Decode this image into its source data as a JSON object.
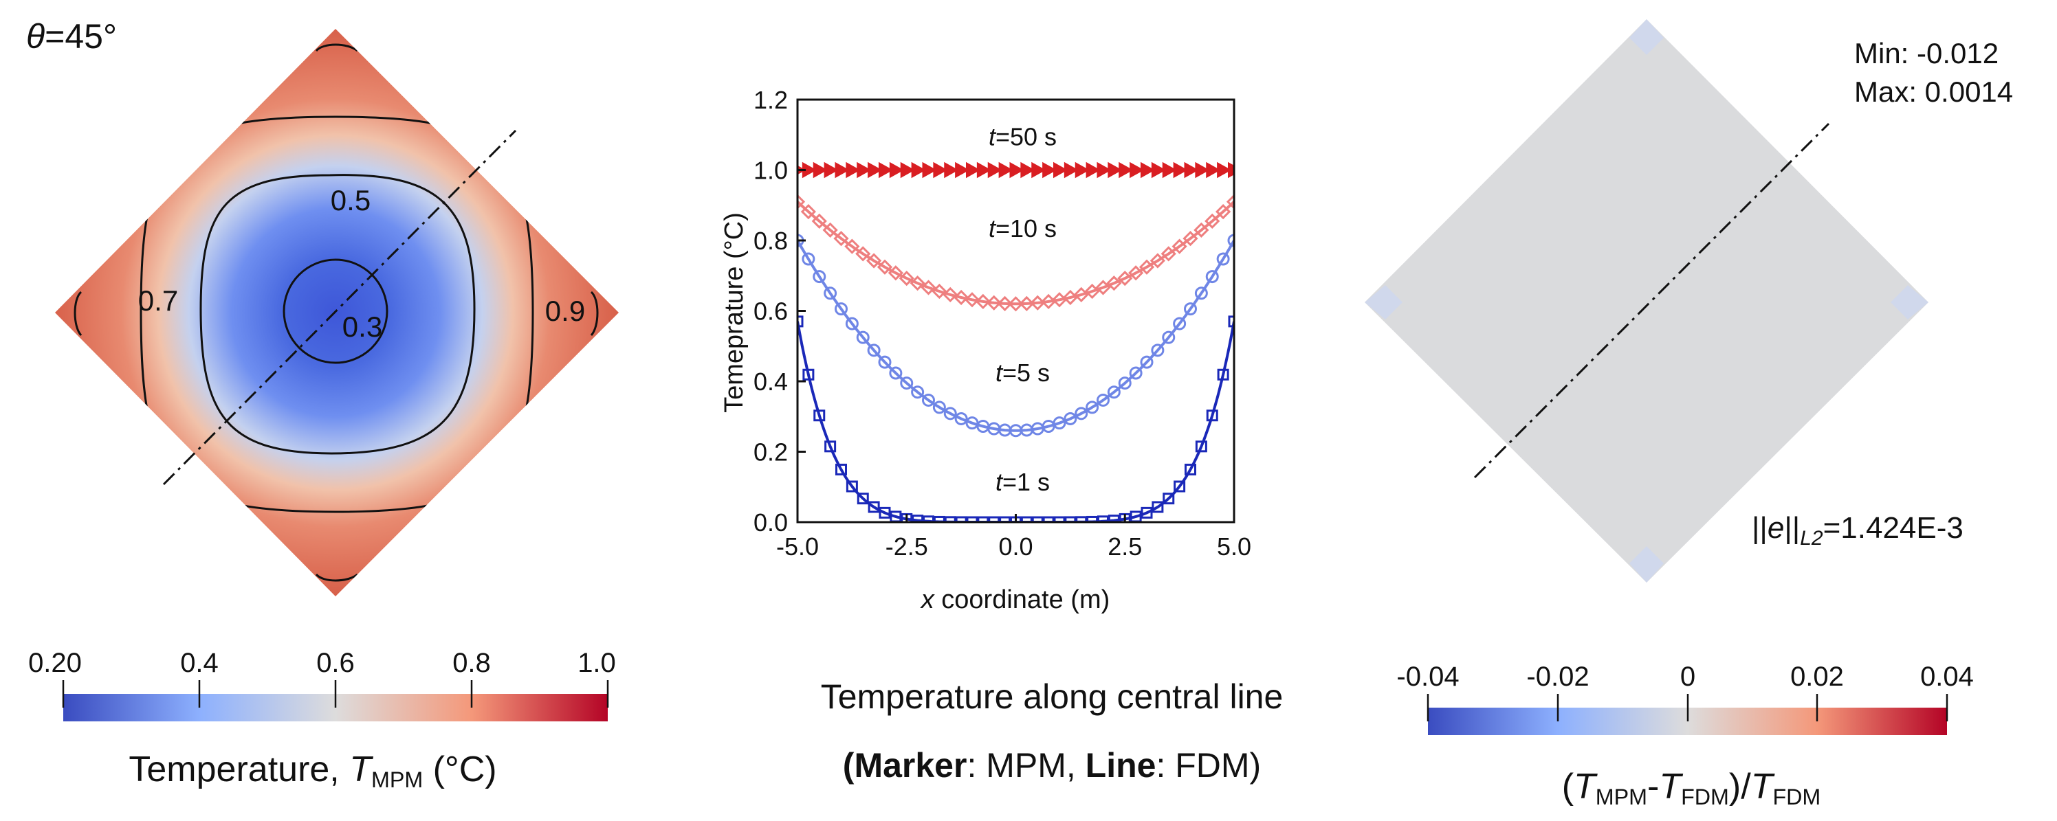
{
  "left_panel": {
    "angle_symbol": "θ",
    "angle_value": "=45°",
    "contour_labels": [
      "0.5",
      "0.7",
      "0.3",
      "0.9"
    ],
    "colorbar": {
      "ticks": [
        "0.20",
        "0.4",
        "0.6",
        "0.8",
        "1.0"
      ],
      "label_prefix": "Temperature, ",
      "label_T": "T",
      "label_sub": "MPM",
      "label_unit": " (°C)"
    },
    "colors": {
      "cold": "#3a4cc0",
      "mid": "#dddcdc",
      "hot": "#b40426"
    }
  },
  "middle_panel": {
    "caption_line1": "Temperature along central line",
    "caption_marker_bold": "(Marker",
    "caption_marker_rest": ": MPM, ",
    "caption_line_bold": "Line",
    "caption_line_rest": ": FDM)"
  },
  "chart_data": {
    "type": "line",
    "xlabel_var": "x",
    "xlabel_rest": " coordinate (m)",
    "ylabel": "Temeprature (°C)",
    "xlim": [
      -5.0,
      5.0
    ],
    "ylim": [
      0.0,
      1.2
    ],
    "xticks": [
      "-5.0",
      "-2.5",
      "0.0",
      "2.5",
      "5.0"
    ],
    "yticks": [
      "0.0",
      "0.2",
      "0.4",
      "0.6",
      "0.8",
      "1.0",
      "1.2"
    ],
    "series": [
      {
        "name": "t=1 s",
        "label_t": "t",
        "label_rest": "=1 s",
        "marker": "square",
        "color": "#1a28b8",
        "center": 0.0,
        "edge": 0.57,
        "power": 6,
        "label_at": [
          0.0,
          0.09
        ]
      },
      {
        "name": "t=5 s",
        "label_t": "t",
        "label_rest": "=5 s",
        "marker": "circle",
        "color": "#6f86e6",
        "center": 0.26,
        "edge": 0.8,
        "power": 2,
        "label_at": [
          0.0,
          0.4
        ]
      },
      {
        "name": "t=10 s",
        "label_t": "t",
        "label_rest": "=10 s",
        "marker": "diamond",
        "color": "#ee7f7f",
        "center": 0.62,
        "edge": 0.91,
        "power": 2,
        "label_at": [
          0.0,
          0.81
        ]
      },
      {
        "name": "t=50 s",
        "label_t": "t",
        "label_rest": "=50 s",
        "marker": "triangle",
        "color": "#d91e22",
        "center": 1.0,
        "edge": 1.0,
        "power": 2,
        "label_at": [
          0.0,
          1.07
        ]
      }
    ]
  },
  "right_panel": {
    "min_text": "Min: -0.012",
    "max_text": "Max: 0.0014",
    "norm_prefix": "||",
    "norm_e": "e",
    "norm_mid": "||",
    "norm_sub": "L2",
    "norm_value": "=1.424E-3",
    "colorbar": {
      "ticks": [
        "-0.04",
        "-0.02",
        "0",
        "0.02",
        "0.04"
      ],
      "label_open": "(",
      "label_T1": "T",
      "label_sub1": "MPM",
      "label_dash": "-",
      "label_T2": "T",
      "label_sub2": "FDM",
      "label_close": ")/",
      "label_T3": "T",
      "label_sub3": "FDM"
    }
  }
}
